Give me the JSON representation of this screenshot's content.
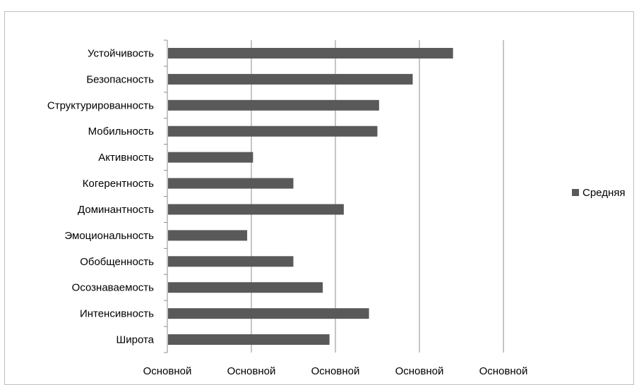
{
  "chart_data": {
    "type": "bar",
    "orientation": "horizontal",
    "categories": [
      "Устойчивость",
      "Безопасность",
      "Структурированность",
      "Мобильность",
      "Активность",
      "Когерентность",
      "Доминантность",
      "Эмоциональность",
      "Обобщенность",
      "Осознаваемость",
      "Интенсивность",
      "Широта"
    ],
    "series": [
      {
        "name": "Средняя",
        "color": "#595959",
        "values": [
          3.4,
          2.92,
          2.52,
          2.5,
          1.02,
          1.5,
          2.1,
          0.95,
          1.5,
          1.85,
          2.4,
          1.93
        ]
      }
    ],
    "xlim": [
      0,
      4
    ],
    "x_tick_labels": [
      "Основной",
      "Основной",
      "Основной",
      "Основной",
      "Основной"
    ],
    "grid": "vertical",
    "legend_position": "right"
  }
}
